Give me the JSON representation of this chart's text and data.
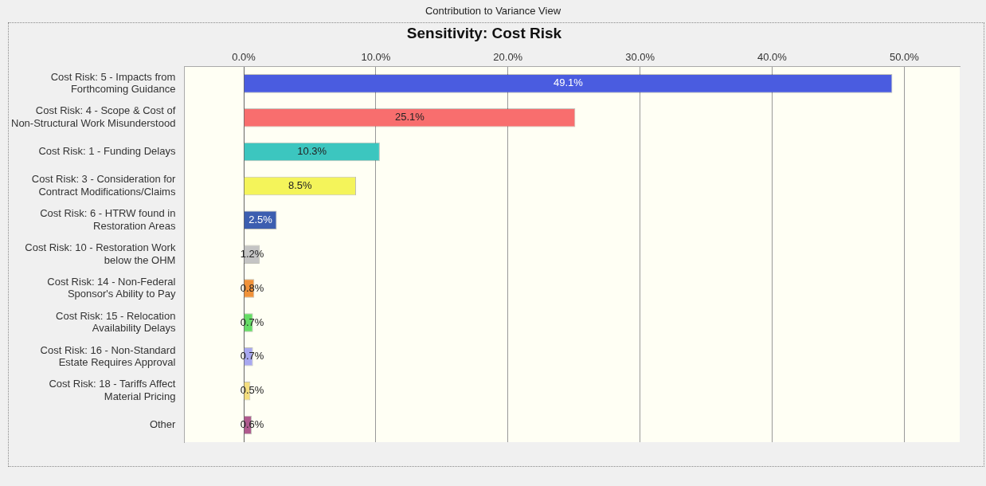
{
  "chart_data": {
    "type": "bar",
    "orientation": "horizontal",
    "title": "Sensitivity: Cost Risk",
    "annotations": [
      "Contribution to Variance View"
    ],
    "categories": [
      "Cost Risk: 5 - Impacts from\nForthcoming Guidance",
      "Cost Risk: 4 - Scope & Cost of\nNon-Structural Work Misunderstood",
      "Cost Risk: 1 - Funding Delays",
      "Cost Risk: 3 - Consideration for\nContract Modifications/Claims",
      "Cost Risk: 6 - HTRW found in\nRestoration Areas",
      "Cost Risk: 10 - Restoration Work\nbelow the OHM",
      "Cost Risk: 14 - Non-Federal\nSponsor's Ability to Pay",
      "Cost Risk: 15 - Relocation\nAvailability Delays",
      "Cost Risk: 16 - Non-Standard\nEstate Requires Approval",
      "Cost Risk: 18 - Tariffs Affect\nMaterial Pricing",
      "Other"
    ],
    "values": [
      49.1,
      25.1,
      10.3,
      8.5,
      2.5,
      1.2,
      0.8,
      0.7,
      0.7,
      0.5,
      0.6
    ],
    "value_labels": [
      "49.1%",
      "25.1%",
      "10.3%",
      "8.5%",
      "2.5%",
      "1.2%",
      "0.8%",
      "0.7%",
      "0.7%",
      "0.5%",
      "0.6%"
    ],
    "colors": [
      "#4a5ce0",
      "#f86e6e",
      "#3cc6bf",
      "#f4f45a",
      "#3c5eb0",
      "#c4c4c4",
      "#f0923a",
      "#66dc66",
      "#a8a8f0",
      "#f4de7e",
      "#b05a8e"
    ],
    "xlim": [
      -4.5,
      54.2
    ],
    "xticks": [
      {
        "value": 0,
        "label": "0.0%"
      },
      {
        "value": 10,
        "label": "10.0%"
      },
      {
        "value": 20,
        "label": "20.0%"
      },
      {
        "value": 30,
        "label": "30.0%"
      },
      {
        "value": 40,
        "label": "40.0%"
      },
      {
        "value": 50,
        "label": "50.0%"
      }
    ],
    "grid": "x",
    "legend": false
  }
}
